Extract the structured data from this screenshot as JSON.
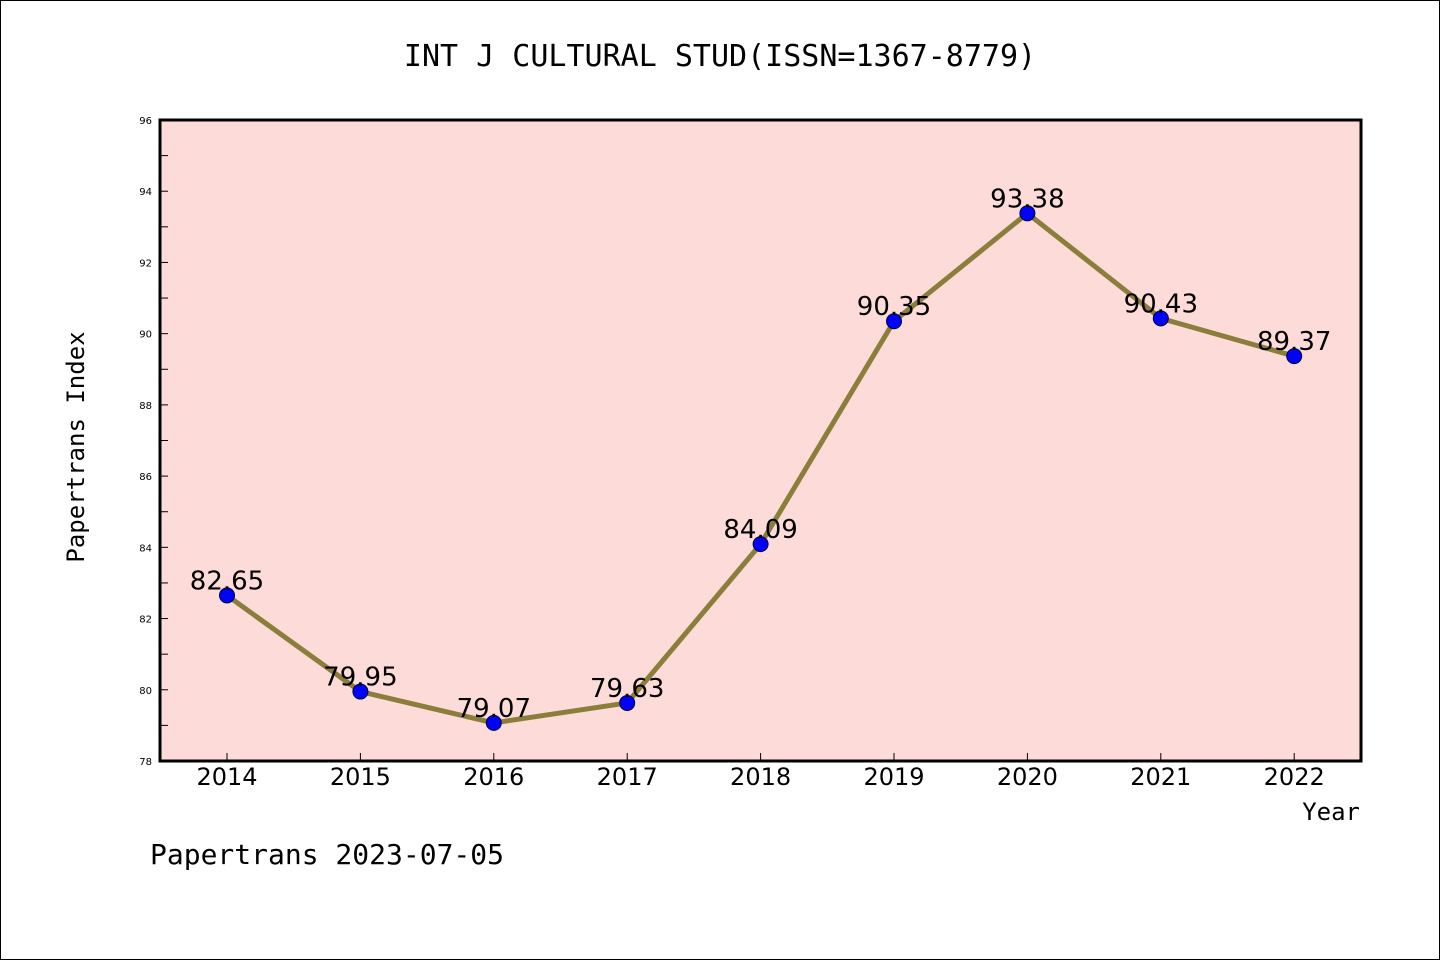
{
  "chart_data": {
    "type": "line",
    "title": "INT J CULTURAL STUD(ISSN=1367-8779)",
    "xlabel": "Year",
    "ylabel": "Papertrans Index",
    "categories": [
      "2014",
      "2015",
      "2016",
      "2017",
      "2018",
      "2019",
      "2020",
      "2021",
      "2022"
    ],
    "series": [
      {
        "values": [
          82.65,
          79.95,
          79.07,
          79.63,
          84.09,
          90.35,
          93.38,
          90.43,
          89.37
        ]
      }
    ],
    "data_labels": [
      "82.65",
      "79.95",
      "79.07",
      "79.63",
      "84.09",
      "90.35",
      "93.38",
      "90.43",
      "89.37"
    ],
    "ylim": [
      78,
      96
    ],
    "yticks": [
      78,
      80,
      82,
      84,
      86,
      88,
      90,
      92,
      94,
      96
    ],
    "grid": false,
    "colors": {
      "plot_background": "#fddbd8",
      "line": "#8b7d3a",
      "marker": "#0000ff"
    }
  },
  "footer": "Papertrans 2023-07-05"
}
